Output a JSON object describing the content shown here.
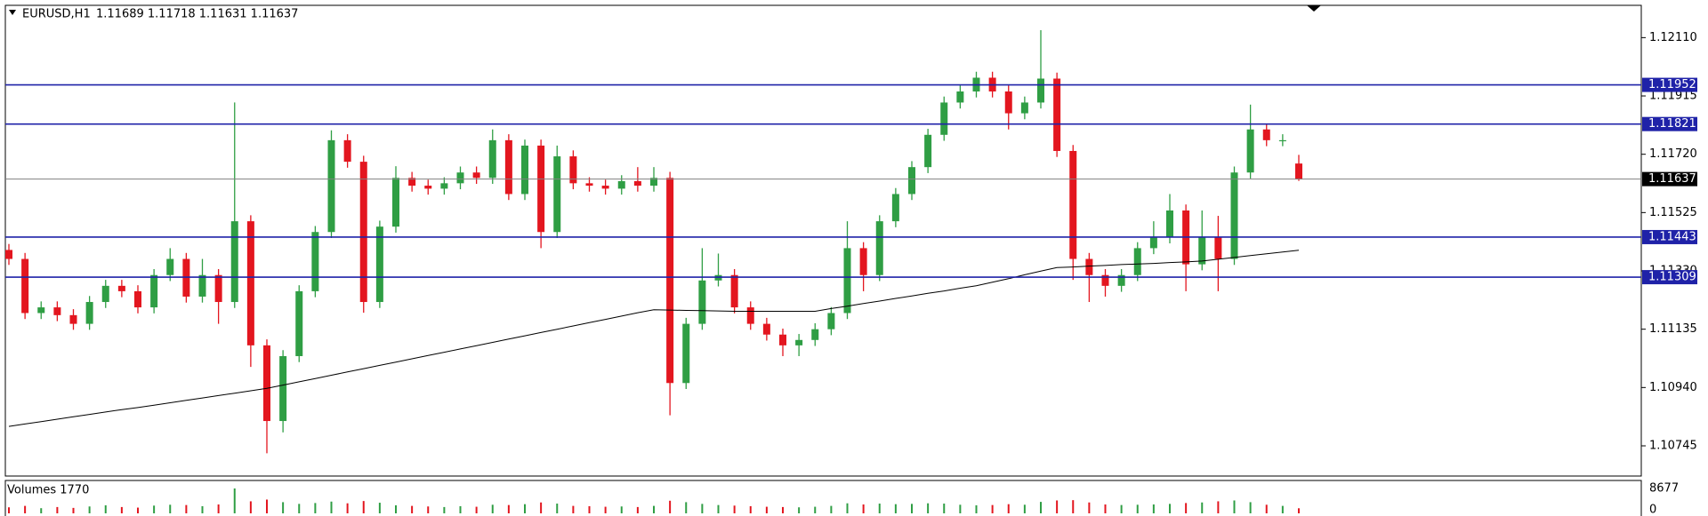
{
  "chart_data": {
    "type": "candlestick",
    "symbol": "EURUSD,H1",
    "ohlc_text": "1.11689 1.11718 1.11631 1.11637",
    "up_color": "#2f9e44",
    "down_color": "#e3161f",
    "ylim": [
      1.10644,
      1.12218
    ],
    "yticks": [
      {
        "value": 1.1211,
        "label": "1.12110"
      },
      1.11915,
      {
        "value": 1.1172,
        "label": "1.11720"
      },
      1.11525,
      {
        "value": 1.1133,
        "label": "1.11330"
      },
      1.11135,
      {
        "value": 1.1094,
        "label": "1.10940"
      },
      1.10745
    ],
    "open": [
      1.114,
      1.1137,
      1.11189,
      1.11208,
      1.11182,
      1.11153,
      1.11226,
      1.1128,
      1.11262,
      1.11208,
      1.11316,
      1.1137,
      1.11244,
      1.11316,
      1.11226,
      1.11496,
      1.11081,
      1.10828,
      1.11045,
      1.11262,
      1.1146,
      1.11767,
      1.11695,
      1.11226,
      1.11478,
      1.11641,
      1.11615,
      1.11605,
      1.11623,
      1.11659,
      1.11641,
      1.11767,
      1.11587,
      1.11749,
      1.1146,
      1.11713,
      1.11623,
      1.11615,
      1.11605,
      1.1163,
      1.11615,
      1.11641,
      1.10955,
      1.11153,
      1.11298,
      1.11316,
      1.11208,
      1.11153,
      1.11117,
      1.11081,
      1.11099,
      1.11135,
      1.11189,
      1.11406,
      1.11316,
      1.11496,
      1.11587,
      1.11677,
      1.11785,
      1.11893,
      1.1193,
      1.11976,
      1.1193,
      1.11857,
      1.11893,
      1.11973,
      1.11731,
      1.1137,
      1.11316,
      1.1128,
      1.11316,
      1.11406,
      1.11442,
      1.11532,
      1.11352,
      1.11442,
      1.1137,
      1.11659,
      1.11803,
      1.11767,
      1.11689
    ],
    "high": [
      1.1142,
      1.1139,
      1.11228,
      1.11228,
      1.11202,
      1.11246,
      1.113,
      1.113,
      1.11282,
      1.11336,
      1.11406,
      1.1139,
      1.1137,
      1.11336,
      1.11893,
      1.11516,
      1.11101,
      1.11065,
      1.11282,
      1.1148,
      1.118,
      1.11787,
      1.11715,
      1.11498,
      1.1168,
      1.11661,
      1.11635,
      1.11643,
      1.11679,
      1.11679,
      1.11803,
      1.11787,
      1.11769,
      1.11769,
      1.11749,
      1.11733,
      1.11643,
      1.11635,
      1.1165,
      1.11677,
      1.11677,
      1.11661,
      1.11173,
      1.11406,
      1.11388,
      1.11336,
      1.11228,
      1.11173,
      1.11137,
      1.11119,
      1.11155,
      1.11209,
      1.11496,
      1.11426,
      1.11516,
      1.11607,
      1.11697,
      1.11805,
      1.11913,
      1.1195,
      1.11996,
      1.11996,
      1.1195,
      1.11913,
      1.12135,
      1.11993,
      1.11751,
      1.1139,
      1.11336,
      1.11336,
      1.11426,
      1.11496,
      1.11587,
      1.11552,
      1.11532,
      1.11514,
      1.11679,
      1.11886,
      1.11823,
      1.11787,
      1.11718
    ],
    "low": [
      1.1135,
      1.11169,
      1.11169,
      1.11162,
      1.11133,
      1.11133,
      1.11206,
      1.11242,
      1.11188,
      1.11188,
      1.11296,
      1.11224,
      1.11224,
      1.11153,
      1.11206,
      1.11009,
      1.1072,
      1.1079,
      1.11025,
      1.11242,
      1.1144,
      1.11675,
      1.1119,
      1.11206,
      1.11458,
      1.11595,
      1.11585,
      1.11585,
      1.11603,
      1.11621,
      1.11621,
      1.11567,
      1.11567,
      1.11406,
      1.1144,
      1.11603,
      1.11595,
      1.11585,
      1.11585,
      1.11595,
      1.11595,
      1.10847,
      1.10935,
      1.11133,
      1.11278,
      1.11188,
      1.11133,
      1.11097,
      1.11045,
      1.11045,
      1.11079,
      1.11115,
      1.11169,
      1.11262,
      1.11296,
      1.11476,
      1.11567,
      1.11657,
      1.11765,
      1.11873,
      1.1191,
      1.1191,
      1.11803,
      1.11837,
      1.11873,
      1.11711,
      1.113,
      1.11226,
      1.11244,
      1.1126,
      1.11296,
      1.11386,
      1.11422,
      1.11262,
      1.11332,
      1.11262,
      1.1135,
      1.11639,
      1.11747,
      1.11747,
      1.11631
    ],
    "close": [
      1.1137,
      1.11189,
      1.11208,
      1.11182,
      1.11153,
      1.11226,
      1.1128,
      1.11262,
      1.11208,
      1.11316,
      1.1137,
      1.11244,
      1.11316,
      1.11226,
      1.11496,
      1.11081,
      1.10828,
      1.11045,
      1.11262,
      1.1146,
      1.11767,
      1.11695,
      1.11226,
      1.11478,
      1.11641,
      1.11615,
      1.11605,
      1.11623,
      1.11659,
      1.11641,
      1.11767,
      1.11587,
      1.11749,
      1.1146,
      1.11713,
      1.11623,
      1.11615,
      1.11605,
      1.1163,
      1.11615,
      1.11641,
      1.10955,
      1.11153,
      1.11298,
      1.11316,
      1.11208,
      1.11153,
      1.11117,
      1.11081,
      1.11099,
      1.11135,
      1.11189,
      1.11406,
      1.11316,
      1.11496,
      1.11587,
      1.11677,
      1.11785,
      1.11893,
      1.1193,
      1.11976,
      1.1193,
      1.11857,
      1.11893,
      1.11973,
      1.11731,
      1.1137,
      1.11316,
      1.1128,
      1.11316,
      1.11406,
      1.11442,
      1.11532,
      1.11352,
      1.11442,
      1.1137,
      1.11659,
      1.11803,
      1.11767,
      1.11767,
      1.11637
    ],
    "ma": {
      "color": "#000000",
      "values": [
        1.1081,
        1.10818,
        1.10826,
        1.10834,
        1.10842,
        1.1085,
        1.10858,
        1.10866,
        1.10873,
        1.10881,
        1.10889,
        1.10897,
        1.10905,
        1.10913,
        1.10921,
        1.10929,
        1.10937,
        1.10948,
        1.10959,
        1.1097,
        1.10981,
        1.10992,
        1.11003,
        1.11014,
        1.11025,
        1.11036,
        1.11047,
        1.11058,
        1.11069,
        1.1108,
        1.11091,
        1.11102,
        1.11113,
        1.11124,
        1.11135,
        1.11146,
        1.11157,
        1.11168,
        1.11179,
        1.1119,
        1.112,
        1.11199,
        1.11198,
        1.11197,
        1.11196,
        1.11195,
        1.11195,
        1.11195,
        1.11195,
        1.11195,
        1.11195,
        1.11204,
        1.11212,
        1.11221,
        1.11229,
        1.11238,
        1.11246,
        1.11255,
        1.11263,
        1.11272,
        1.1128,
        1.11292,
        1.11304,
        1.11317,
        1.11329,
        1.11341,
        1.11343,
        1.11346,
        1.11348,
        1.11351,
        1.11353,
        1.11355,
        1.11358,
        1.1136,
        1.11363,
        1.11369,
        1.11375,
        1.11381,
        1.11387,
        1.11393,
        1.11399
      ]
    },
    "levels": [
      {
        "value": 1.11952,
        "color": "#1f22a8"
      },
      {
        "value": 1.11821,
        "color": "#1f22a8"
      },
      {
        "value": 1.11443,
        "color": "#1f22a8"
      },
      {
        "value": 1.11309,
        "color": "#1f22a8"
      }
    ],
    "last_price": {
      "value": 1.11637,
      "color": "#808080"
    },
    "volume": {
      "label": "Volumes 1770",
      "ylim": [
        0,
        8677
      ],
      "yticks": [
        8677,
        0
      ],
      "values": [
        2100,
        2600,
        1800,
        2200,
        1900,
        2400,
        2800,
        2200,
        2000,
        2700,
        3000,
        2900,
        2500,
        3100,
        8677,
        4200,
        4800,
        3900,
        3300,
        3600,
        4100,
        3500,
        4300,
        3700,
        2800,
        2600,
        2400,
        2200,
        2500,
        2300,
        3000,
        2900,
        3200,
        3800,
        3400,
        2600,
        2500,
        2300,
        2400,
        2200,
        2600,
        4400,
        3900,
        3300,
        2900,
        2700,
        2500,
        2300,
        2200,
        2100,
        2300,
        2600,
        3500,
        3100,
        3400,
        3200,
        3300,
        3500,
        3400,
        3000,
        2800,
        2900,
        3200,
        3000,
        4000,
        4500,
        4600,
        3800,
        3100,
        2900,
        3000,
        3100,
        3300,
        3600,
        3800,
        4200,
        4500,
        3900,
        3000,
        2600,
        1770
      ]
    }
  }
}
